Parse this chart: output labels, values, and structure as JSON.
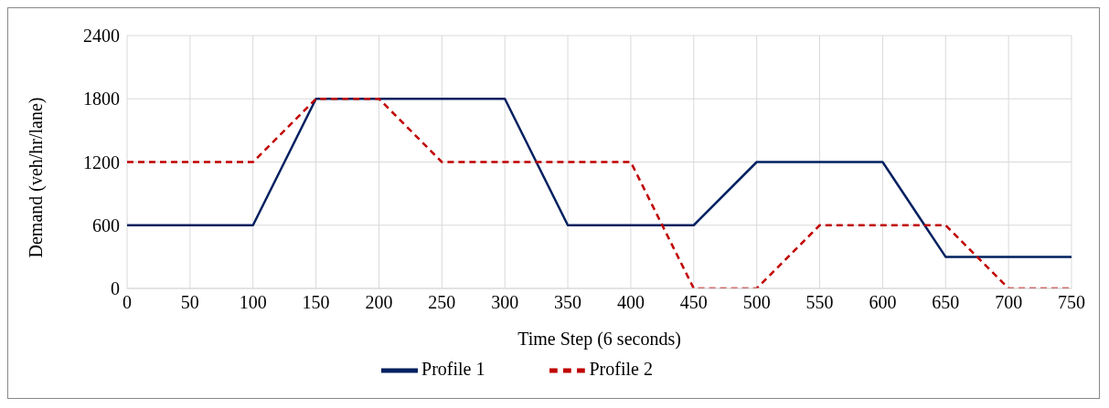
{
  "chart_data": {
    "type": "line",
    "xlabel": "Time Step (6 seconds)",
    "ylabel": "Demand (veh/hr/lane)",
    "xlim": [
      0,
      750
    ],
    "xticks": [
      0,
      50,
      100,
      150,
      200,
      250,
      300,
      350,
      400,
      450,
      500,
      550,
      600,
      650,
      700,
      750
    ],
    "ylim": [
      0,
      2400
    ],
    "yticks": [
      0,
      600,
      1200,
      1800,
      2400
    ],
    "grid": true,
    "legend": "bottom",
    "marker": "none",
    "series": [
      {
        "name": "Profile 1",
        "color": "#002060",
        "line_style": "solid",
        "x": [
          0,
          100,
          150,
          300,
          350,
          450,
          500,
          600,
          650,
          750
        ],
        "values": [
          600,
          600,
          1800,
          1800,
          600,
          600,
          1200,
          1200,
          300,
          300
        ]
      },
      {
        "name": "Profile 2",
        "color": "#c00000",
        "line_style": "dashed",
        "x": [
          0,
          100,
          150,
          200,
          250,
          400,
          450,
          500,
          550,
          650,
          700,
          750
        ],
        "values": [
          1200,
          1200,
          1800,
          1800,
          1200,
          1200,
          0,
          0,
          600,
          600,
          0,
          0
        ]
      }
    ]
  }
}
